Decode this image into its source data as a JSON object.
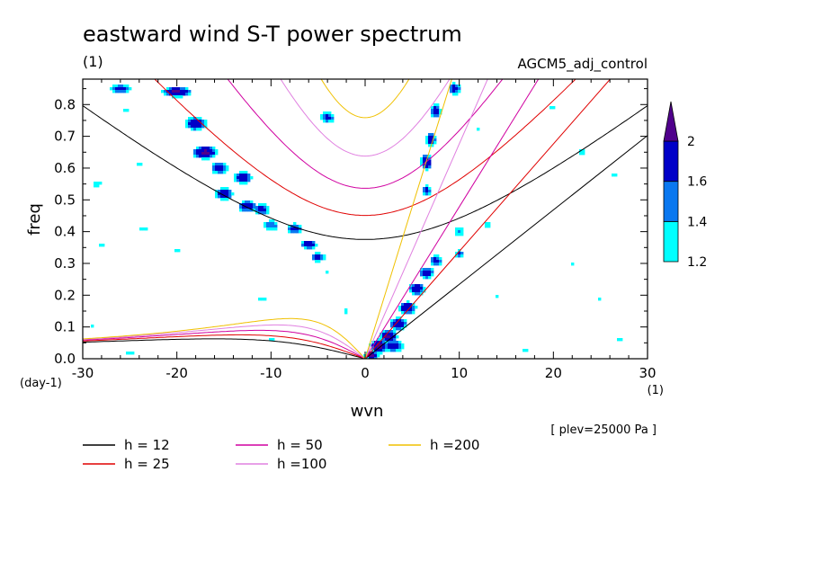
{
  "chart_data": {
    "type": "heatmap",
    "title": "eastward wind S-T power spectrum",
    "subtitle_left": "(1)",
    "subtitle_right": "AGCM5_adj_control",
    "xlabel": "wvn",
    "ylabel": "freq",
    "x_unit": "(1)",
    "y_unit": "(day-1)",
    "level_note": "[ plev=25000 Pa ]",
    "xlim": [
      -30,
      30
    ],
    "ylim": [
      0,
      0.88
    ],
    "x_ticks": [
      {
        "v": -30,
        "label": "-30"
      },
      {
        "v": -20,
        "label": "-20"
      },
      {
        "v": -10,
        "label": "-10"
      },
      {
        "v": 0,
        "label": "0"
      },
      {
        "v": 10,
        "label": "10"
      },
      {
        "v": 20,
        "label": "20"
      },
      {
        "v": 30,
        "label": "30"
      }
    ],
    "y_ticks": [
      {
        "v": 0,
        "label": "0.0"
      },
      {
        "v": 0.1,
        "label": "0.1"
      },
      {
        "v": 0.2,
        "label": "0.2"
      },
      {
        "v": 0.3,
        "label": "0.3"
      },
      {
        "v": 0.4,
        "label": "0.4"
      },
      {
        "v": 0.5,
        "label": "0.5"
      },
      {
        "v": 0.6,
        "label": "0.6"
      },
      {
        "v": 0.7,
        "label": "0.7"
      },
      {
        "v": 0.8,
        "label": "0.8"
      }
    ],
    "colorbar": {
      "levels": [
        1.2,
        1.4,
        1.6,
        2
      ],
      "labels": [
        "1.2",
        "1.4",
        "1.6",
        "2"
      ],
      "colors": [
        "#00ffff",
        "#0a78f0",
        "#0000c8",
        "#50008c"
      ]
    },
    "contour_colors": {
      "low": "#00ffff",
      "mid": "#0a78f0",
      "high": "#0000c8",
      "peak": "#50008c"
    },
    "dispersion_curves": [
      {
        "h": 12,
        "label": "h = 12",
        "color": "#000000"
      },
      {
        "h": 25,
        "label": "h = 25",
        "color": "#e00000"
      },
      {
        "h": 50,
        "label": "h = 50",
        "color": "#d000a0"
      },
      {
        "h": 100,
        "label": "h =100",
        "color": "#e080e0"
      },
      {
        "h": 200,
        "label": "h =200",
        "color": "#f0c000"
      }
    ],
    "spectral_peaks": [
      {
        "x": -26,
        "y": 0.85,
        "amp": 1.7,
        "sx": 1.5,
        "sy": 0.015
      },
      {
        "x": -20,
        "y": 0.84,
        "amp": 2.1,
        "sx": 1.5,
        "sy": 0.015
      },
      {
        "x": -18,
        "y": 0.74,
        "amp": 1.9,
        "sx": 1.2,
        "sy": 0.022
      },
      {
        "x": -17,
        "y": 0.65,
        "amp": 2.1,
        "sx": 1.3,
        "sy": 0.02
      },
      {
        "x": -15.5,
        "y": 0.6,
        "amp": 1.8,
        "sx": 1.0,
        "sy": 0.02
      },
      {
        "x": -15,
        "y": 0.52,
        "amp": 1.9,
        "sx": 1.0,
        "sy": 0.02
      },
      {
        "x": -13,
        "y": 0.57,
        "amp": 1.9,
        "sx": 1.0,
        "sy": 0.02
      },
      {
        "x": -12.5,
        "y": 0.48,
        "amp": 1.9,
        "sx": 1.0,
        "sy": 0.02
      },
      {
        "x": -11,
        "y": 0.47,
        "amp": 1.8,
        "sx": 0.9,
        "sy": 0.02
      },
      {
        "x": -10,
        "y": 0.42,
        "amp": 1.6,
        "sx": 1.0,
        "sy": 0.02
      },
      {
        "x": -7.5,
        "y": 0.41,
        "amp": 1.7,
        "sx": 1.0,
        "sy": 0.02
      },
      {
        "x": -6,
        "y": 0.36,
        "amp": 1.9,
        "sx": 0.9,
        "sy": 0.015
      },
      {
        "x": -5,
        "y": 0.32,
        "amp": 1.8,
        "sx": 0.9,
        "sy": 0.015
      },
      {
        "x": -4,
        "y": 0.76,
        "amp": 1.7,
        "sx": 0.9,
        "sy": 0.02
      },
      {
        "x": -28.5,
        "y": 0.55,
        "amp": 1.4,
        "sx": 0.8,
        "sy": 0.015
      },
      {
        "x": -24,
        "y": 0.61,
        "amp": 1.3,
        "sx": 0.9,
        "sy": 0.015
      },
      {
        "x": -25.5,
        "y": 0.78,
        "amp": 1.3,
        "sx": 0.9,
        "sy": 0.015
      },
      {
        "x": -23.5,
        "y": 0.41,
        "amp": 1.35,
        "sx": 0.8,
        "sy": 0.015
      },
      {
        "x": -28,
        "y": 0.36,
        "amp": 1.3,
        "sx": 0.7,
        "sy": 0.012
      },
      {
        "x": -29,
        "y": 0.1,
        "amp": 1.25,
        "sx": 0.8,
        "sy": 0.012
      },
      {
        "x": -25,
        "y": 0.02,
        "amp": 1.4,
        "sx": 0.8,
        "sy": 0.012
      },
      {
        "x": -20,
        "y": 0.34,
        "amp": 1.3,
        "sx": 0.7,
        "sy": 0.012
      },
      {
        "x": -11,
        "y": 0.19,
        "amp": 1.4,
        "sx": 0.7,
        "sy": 0.012
      },
      {
        "x": -10,
        "y": 0.06,
        "amp": 1.25,
        "sx": 0.8,
        "sy": 0.012
      },
      {
        "x": -4,
        "y": 0.27,
        "amp": 1.3,
        "sx": 0.7,
        "sy": 0.012
      },
      {
        "x": -2,
        "y": 0.15,
        "amp": 1.3,
        "sx": 0.7,
        "sy": 0.012
      },
      {
        "x": 0.7,
        "y": 0.01,
        "amp": 2.2,
        "sx": 0.7,
        "sy": 0.012
      },
      {
        "x": 1.5,
        "y": 0.04,
        "amp": 2.2,
        "sx": 0.9,
        "sy": 0.02
      },
      {
        "x": 2.5,
        "y": 0.07,
        "amp": 2.1,
        "sx": 0.9,
        "sy": 0.02
      },
      {
        "x": 3.5,
        "y": 0.11,
        "amp": 2.0,
        "sx": 0.9,
        "sy": 0.02
      },
      {
        "x": 4.5,
        "y": 0.16,
        "amp": 2.0,
        "sx": 0.9,
        "sy": 0.02
      },
      {
        "x": 5.5,
        "y": 0.22,
        "amp": 1.9,
        "sx": 0.9,
        "sy": 0.02
      },
      {
        "x": 6.5,
        "y": 0.27,
        "amp": 1.8,
        "sx": 0.9,
        "sy": 0.02
      },
      {
        "x": 7.5,
        "y": 0.31,
        "amp": 1.7,
        "sx": 0.8,
        "sy": 0.02
      },
      {
        "x": 3,
        "y": 0.04,
        "amp": 1.8,
        "sx": 1.2,
        "sy": 0.02
      },
      {
        "x": 6.5,
        "y": 0.62,
        "amp": 2.0,
        "sx": 0.6,
        "sy": 0.025
      },
      {
        "x": 7,
        "y": 0.69,
        "amp": 1.8,
        "sx": 0.6,
        "sy": 0.025
      },
      {
        "x": 7.5,
        "y": 0.78,
        "amp": 1.8,
        "sx": 0.6,
        "sy": 0.025
      },
      {
        "x": 6.5,
        "y": 0.53,
        "amp": 1.7,
        "sx": 0.6,
        "sy": 0.02
      },
      {
        "x": 9.5,
        "y": 0.85,
        "amp": 1.8,
        "sx": 0.7,
        "sy": 0.02
      },
      {
        "x": 10,
        "y": 0.4,
        "amp": 1.5,
        "sx": 0.7,
        "sy": 0.02
      },
      {
        "x": 10,
        "y": 0.33,
        "amp": 1.7,
        "sx": 0.5,
        "sy": 0.015
      },
      {
        "x": 13,
        "y": 0.42,
        "amp": 1.4,
        "sx": 0.7,
        "sy": 0.012
      },
      {
        "x": 14,
        "y": 0.2,
        "amp": 1.3,
        "sx": 0.7,
        "sy": 0.012
      },
      {
        "x": 17,
        "y": 0.03,
        "amp": 1.3,
        "sx": 0.7,
        "sy": 0.012
      },
      {
        "x": 22,
        "y": 0.3,
        "amp": 1.25,
        "sx": 0.7,
        "sy": 0.012
      },
      {
        "x": 23,
        "y": 0.65,
        "amp": 1.35,
        "sx": 0.7,
        "sy": 0.012
      },
      {
        "x": 25,
        "y": 0.19,
        "amp": 1.25,
        "sx": 0.7,
        "sy": 0.012
      },
      {
        "x": 27,
        "y": 0.06,
        "amp": 1.3,
        "sx": 0.7,
        "sy": 0.012
      },
      {
        "x": 20,
        "y": 0.79,
        "amp": 1.3,
        "sx": 0.7,
        "sy": 0.012
      },
      {
        "x": 12,
        "y": 0.72,
        "amp": 1.3,
        "sx": 0.6,
        "sy": 0.012
      },
      {
        "x": 26.5,
        "y": 0.58,
        "amp": 1.25,
        "sx": 0.7,
        "sy": 0.012
      }
    ]
  }
}
